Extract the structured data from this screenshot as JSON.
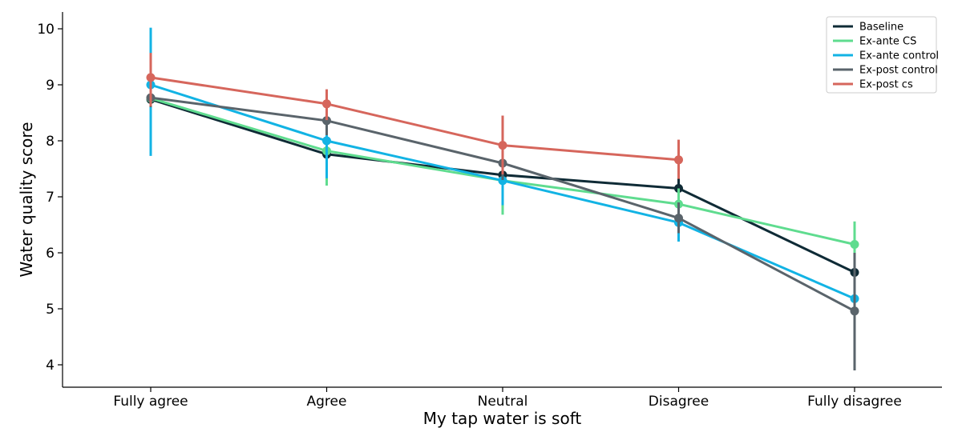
{
  "chart_data": {
    "type": "line",
    "title": "",
    "xlabel": "My tap water is soft",
    "ylabel": "Water quality score",
    "categories": [
      "Fully agree",
      "Agree",
      "Neutral",
      "Disagree",
      "Fully disagree"
    ],
    "ylim": [
      3.6,
      10.3
    ],
    "yticks": [
      4,
      5,
      6,
      7,
      8,
      9,
      10
    ],
    "grid": false,
    "legend_position": "top-right",
    "series": [
      {
        "name": "Baseline",
        "color": "#0f2b36",
        "values": [
          8.74,
          7.76,
          7.39,
          7.15,
          5.65
        ],
        "ci": [
          [
            8.55,
            8.93
          ],
          [
            7.6,
            7.92
          ],
          [
            7.25,
            7.53
          ],
          [
            6.95,
            7.35
          ],
          [
            5.45,
            5.85
          ]
        ]
      },
      {
        "name": "Ex-ante CS",
        "color": "#5fdc8f",
        "values": [
          8.76,
          7.82,
          7.29,
          6.87,
          6.15
        ],
        "ci": [
          [
            8.55,
            8.97
          ],
          [
            7.2,
            8.4
          ],
          [
            6.68,
            7.85
          ],
          [
            6.6,
            7.15
          ],
          [
            5.75,
            6.56
          ]
        ]
      },
      {
        "name": "Ex-ante control",
        "color": "#12b3e4",
        "values": [
          9.0,
          8.0,
          7.29,
          6.54,
          5.18
        ],
        "ci": [
          [
            7.73,
            10.02
          ],
          [
            7.33,
            8.58
          ],
          [
            6.85,
            7.72
          ],
          [
            6.2,
            6.85
          ],
          [
            4.95,
            5.45
          ]
        ]
      },
      {
        "name": "Ex-post control",
        "color": "#5a646b",
        "values": [
          8.77,
          8.36,
          7.6,
          6.62,
          4.96
        ],
        "ci": [
          [
            8.6,
            8.95
          ],
          [
            8.1,
            8.62
          ],
          [
            7.3,
            7.9
          ],
          [
            6.35,
            6.9
          ],
          [
            3.9,
            6.0
          ]
        ]
      },
      {
        "name": "Ex-post cs",
        "color": "#d6665c",
        "values": [
          9.13,
          8.66,
          7.92,
          7.66,
          null
        ],
        "ci": [
          [
            8.62,
            9.57
          ],
          [
            8.37,
            8.92
          ],
          [
            7.4,
            8.45
          ],
          [
            7.32,
            8.02
          ],
          null
        ]
      }
    ]
  }
}
